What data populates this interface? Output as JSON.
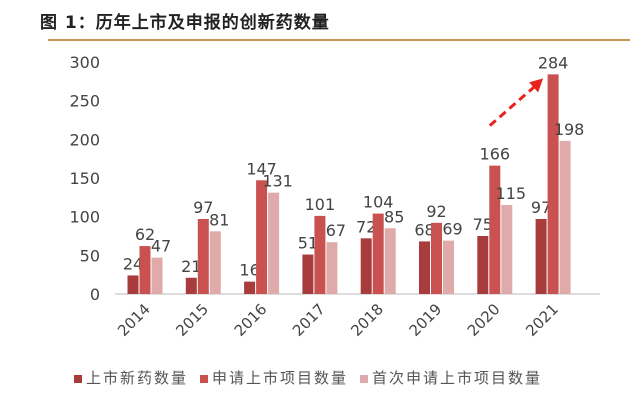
{
  "title": "图 1：历年上市及申报的创新药数量",
  "chart_data": {
    "type": "bar",
    "title": "图 1：历年上市及申报的创新药数量",
    "categories": [
      "2014",
      "2015",
      "2016",
      "2017",
      "2018",
      "2019",
      "2020",
      "2021"
    ],
    "series": [
      {
        "name": "上市新药数量",
        "color": "#A83C3C",
        "values": [
          24,
          21,
          16,
          51,
          72,
          68,
          75,
          97
        ]
      },
      {
        "name": "申请上市项目数量",
        "color": "#C9514F",
        "values": [
          62,
          97,
          147,
          101,
          104,
          92,
          166,
          284
        ]
      },
      {
        "name": "首次申请上市项目数量",
        "color": "#DEAAAA",
        "values": [
          47,
          81,
          131,
          67,
          85,
          69,
          115,
          198
        ]
      }
    ],
    "ylim": [
      0,
      300
    ],
    "yticks": [
      0,
      50,
      100,
      150,
      200,
      250,
      300
    ],
    "grid": false,
    "legend": "bottom",
    "annotation": {
      "type": "dashed-arrow",
      "color": "#E8231E",
      "from": "2020",
      "to": "2021"
    }
  }
}
